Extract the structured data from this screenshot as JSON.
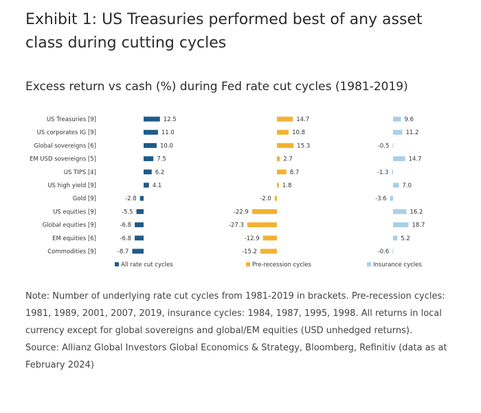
{
  "title": "Exhibit 1: US Treasuries performed best of any asset class during cutting cycles",
  "subtitle": "Excess return vs cash (%) during Fed rate cut cycles (1981-2019)",
  "note": "Note: Number of underlying rate cut cycles from 1981-2019 in brackets. Pre-recession cycles: 1981, 1989, 2001, 2007, 2019, insurance cycles: 1984, 1987, 1995, 1998. All returns in local currency except for global sovereigns and global/EM equities (USD unhedged returns).",
  "source": "Source: Allianz Global Investors Global Economics & Strategy, Bloomberg, Refinitiv (data as at February 2024)",
  "chart_data": {
    "type": "bar",
    "orientation": "horizontal",
    "categories": [
      "US Treasuries [9]",
      "US corporates IG [9]",
      "Global sovereigns [6]",
      "EM USD sovereigns [5]",
      "US TIPS [4]",
      "US high yield [9]",
      "Gold [9]",
      "US equities [9]",
      "Global equities [9]",
      "EM equities [6]",
      "Commodities [9]"
    ],
    "series": [
      {
        "name": "All rate cut cycles",
        "color": "#1f5a8a",
        "values": [
          12.5,
          11.0,
          10.0,
          7.5,
          6.2,
          4.1,
          -2.8,
          -5.5,
          -6.8,
          -6.8,
          -8.7
        ]
      },
      {
        "name": "Pre-recession cycles",
        "color": "#f2b233",
        "values": [
          14.7,
          10.8,
          15.3,
          2.7,
          8.7,
          1.8,
          -2.0,
          -22.9,
          -27.3,
          -12.9,
          -15.2
        ]
      },
      {
        "name": "Insurance cycles",
        "color": "#a9d0e6",
        "values": [
          9.6,
          11.2,
          -0.5,
          14.7,
          -1.3,
          7.0,
          -3.6,
          16.2,
          18.7,
          5.2,
          -0.6
        ]
      }
    ],
    "legend_position": "bottom",
    "grid": false
  }
}
